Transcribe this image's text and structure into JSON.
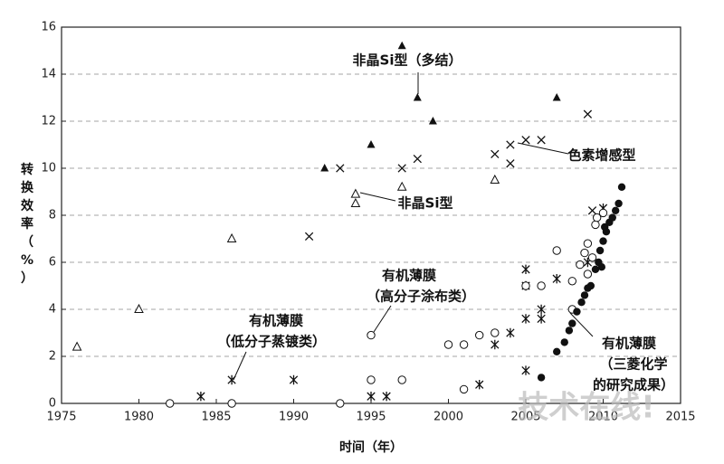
{
  "chart_data": {
    "type": "scatter",
    "x_label": "时间（年）",
    "y_label": [
      "转",
      "换",
      "效",
      "率",
      "（",
      "%",
      "）"
    ],
    "watermark": "技术在线!",
    "xlim": [
      1975,
      2015
    ],
    "xticks": [
      1975,
      1980,
      1985,
      1990,
      1995,
      2000,
      2005,
      2010,
      2015
    ],
    "ylim": [
      0,
      16
    ],
    "yticks": [
      0,
      2,
      4,
      6,
      8,
      10,
      12,
      14,
      16
    ],
    "grid": true,
    "series": [
      {
        "name": [
          "非晶Si型（多结）"
        ],
        "marker": "triangle-filled",
        "color": "#111",
        "x": [
          1992,
          1995,
          1997,
          1998,
          1999,
          2007
        ],
        "values": [
          10,
          11,
          15.2,
          13,
          12,
          13
        ]
      },
      {
        "name": [
          "非晶Si型"
        ],
        "marker": "triangle-open",
        "color": "#111",
        "x": [
          1976,
          1980,
          1986,
          1994,
          1994,
          1997,
          2003
        ],
        "values": [
          2.4,
          4,
          7,
          8.9,
          8.5,
          9.2,
          9.5
        ]
      },
      {
        "name": [
          "色素增感型"
        ],
        "marker": "x",
        "color": "#111",
        "x": [
          1991,
          1993,
          1997,
          1998,
          2003,
          2004,
          2004,
          2005,
          2006,
          2009,
          2009.3
        ],
        "values": [
          7.1,
          10,
          10,
          10.4,
          10.6,
          10.2,
          11,
          11.2,
          11.2,
          12.3,
          8.2
        ]
      },
      {
        "name": [
          "有机薄膜",
          "（低分子蒸镀类）"
        ],
        "marker": "asterisk",
        "color": "#111",
        "x": [
          1984,
          1986,
          1990,
          1995,
          1996,
          2002,
          2003,
          2004,
          2005,
          2005,
          2005,
          2005,
          2006,
          2006,
          2007,
          2009,
          2010
        ],
        "values": [
          0.3,
          1,
          1,
          0.3,
          0.3,
          0.8,
          2.5,
          3,
          1.4,
          3.6,
          5,
          5.7,
          3.6,
          4,
          5.3,
          6,
          8.3
        ]
      },
      {
        "name": [
          "有机薄膜",
          "（高分子涂布类）"
        ],
        "marker": "circle-open",
        "color": "#111",
        "x": [
          1982,
          1986,
          1993,
          1995,
          1995,
          1997,
          2000,
          2001,
          2001,
          2002,
          2003,
          2005,
          2006,
          2007,
          2008,
          2008,
          2008.5,
          2008.8,
          2009,
          2009,
          2009.3,
          2009.5,
          2009.6,
          2010
        ],
        "values": [
          0,
          0,
          0,
          1,
          2.9,
          1,
          2.5,
          2.5,
          0.6,
          2.9,
          3,
          5,
          5,
          6.5,
          4,
          5.2,
          5.9,
          6.4,
          6.8,
          5.5,
          6.2,
          7.6,
          7.9,
          8.1
        ]
      },
      {
        "name": [
          "有机薄膜",
          "（三菱化学",
          "的研究成果）"
        ],
        "marker": "circle-filled",
        "color": "#111",
        "x": [
          2006,
          2007,
          2007.5,
          2007.8,
          2008,
          2008.3,
          2008.6,
          2008.8,
          2009,
          2009.2,
          2009.5,
          2009.7,
          2009.8,
          2009.9,
          2010,
          2010.1,
          2010.2,
          2010.4,
          2010.6,
          2010.8,
          2011,
          2011.2
        ],
        "values": [
          1.1,
          2.2,
          2.6,
          3.1,
          3.4,
          3.9,
          4.3,
          4.6,
          4.9,
          5,
          5.7,
          6,
          6.5,
          5.8,
          6.9,
          7.5,
          7.3,
          7.7,
          7.9,
          8.2,
          8.5,
          9.2
        ]
      }
    ]
  }
}
